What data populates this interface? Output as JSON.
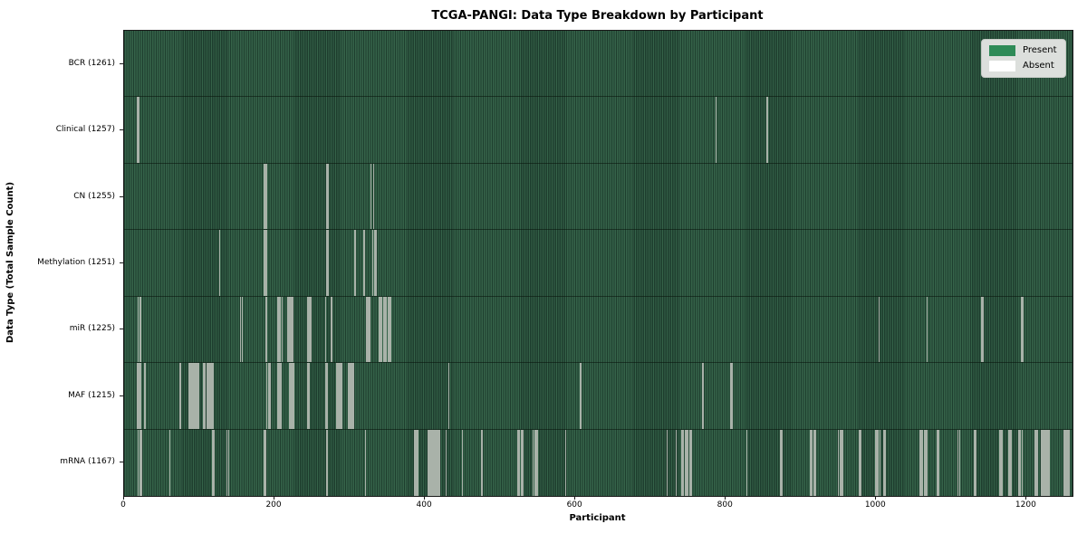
{
  "chart_data": {
    "type": "heatmap",
    "title": "TCGA-PANGI: Data Type Breakdown by Participant",
    "xlabel": "Participant",
    "ylabel": "Data Type (Total Sample Count)",
    "x_ticks": [
      0,
      200,
      400,
      600,
      800,
      1000,
      1200
    ],
    "x_range": [
      0,
      1261
    ],
    "total_participants": 1261,
    "grid": false,
    "legend_position": "upper right",
    "legend": [
      {
        "label": "Present",
        "color": "#2e8b57"
      },
      {
        "label": "Absent",
        "color": "#ffffff"
      }
    ],
    "colors": {
      "present_stripe_green": "#356349",
      "present_stripe_dark": "#1e3e2e",
      "absent_line": "#a9b2a9",
      "figure_background": "#ffffff"
    },
    "rows": [
      {
        "label": "BCR (1261)",
        "data_type": "BCR",
        "present_count": 1261,
        "absent_count": 0,
        "absent_approx": []
      },
      {
        "label": "Clinical (1257)",
        "data_type": "Clinical",
        "present_count": 1257,
        "absent_count": 4,
        "absent_approx": [
          17,
          19,
          786,
          854
        ]
      },
      {
        "label": "CN (1255)",
        "data_type": "CN",
        "present_count": 1255,
        "absent_count": 6,
        "absent_approx": [
          186,
          188,
          268,
          270,
          327,
          331
        ]
      },
      {
        "label": "Methylation (1251)",
        "data_type": "Methylation",
        "present_count": 1251,
        "absent_count": 10,
        "absent_approx": [
          126,
          186,
          188,
          268,
          270,
          306,
          318,
          330,
          332,
          334
        ]
      },
      {
        "label": "miR (1225)",
        "data_type": "miR",
        "present_count": 1225,
        "absent_count": 36,
        "absent_approx": [
          18,
          21,
          154,
          156,
          188,
          203,
          205,
          207,
          209,
          217,
          219,
          221,
          223,
          243,
          245,
          247,
          267,
          275,
          322,
          324,
          326,
          338,
          340,
          342,
          344,
          346,
          348,
          350,
          352,
          354,
          1003,
          1067,
          1139,
          1141,
          1192,
          1194
        ]
      },
      {
        "label": "MAF (1215)",
        "data_type": "MAF",
        "present_count": 1215,
        "absent_count": 46,
        "absent_approx": [
          17,
          19,
          21,
          27,
          74,
          86,
          88,
          90,
          92,
          94,
          96,
          98,
          105,
          107,
          109,
          111,
          113,
          115,
          117,
          189,
          191,
          193,
          204,
          206,
          208,
          219,
          221,
          223,
          225,
          243,
          245,
          267,
          269,
          282,
          284,
          286,
          288,
          298,
          300,
          302,
          304,
          431,
          606,
          769,
          806,
          808
        ]
      },
      {
        "label": "mRNA (1167)",
        "data_type": "mRNA",
        "present_count": 1167,
        "absent_count": 94,
        "absent_approx": [
          18,
          20,
          22,
          60,
          117,
          119,
          136,
          138,
          185,
          187,
          269,
          320,
          386,
          388,
          390,
          404,
          406,
          408,
          410,
          412,
          414,
          416,
          418,
          427,
          449,
          475,
          523,
          525,
          527,
          529,
          543,
          545,
          547,
          549,
          586,
          721,
          733,
          741,
          743,
          745,
          747,
          749,
          751,
          753,
          827,
          872,
          874,
          912,
          914,
          916,
          918,
          949,
          951,
          953,
          955,
          977,
          979,
          998,
          1000,
          1002,
          1004,
          1009,
          1011,
          1057,
          1059,
          1061,
          1063,
          1065,
          1067,
          1080,
          1082,
          1108,
          1110,
          1130,
          1132,
          1164,
          1166,
          1176,
          1178,
          1189,
          1191,
          1193,
          1211,
          1213,
          1219,
          1221,
          1223,
          1225,
          1227,
          1229,
          1249,
          1251,
          1253,
          1255
        ]
      }
    ]
  }
}
